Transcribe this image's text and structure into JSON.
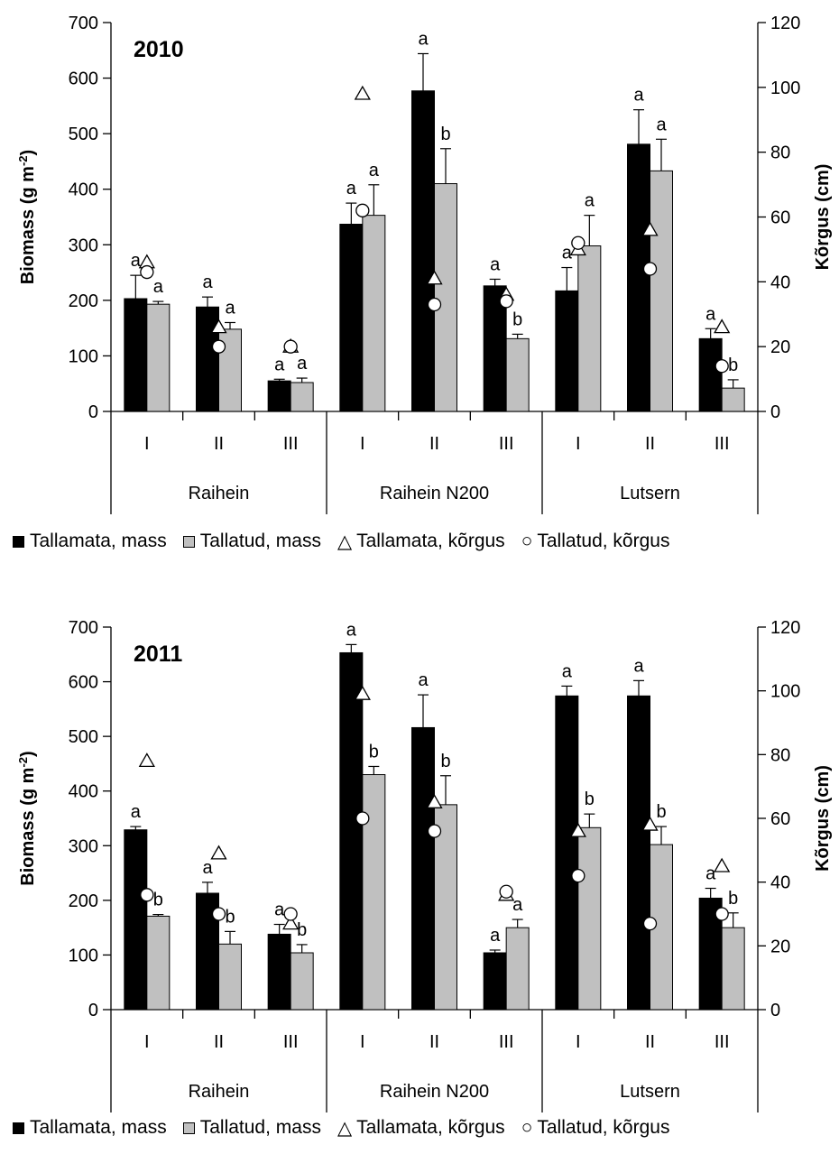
{
  "chart_data": [
    {
      "type": "bar",
      "title": "2010",
      "ylabel": "Biomass (g m-2)",
      "ylabel_text": "Biomass (g m",
      "ylabel_sup": "-2",
      "ylabel_close": ")",
      "y2label": "Kõrgus (cm)",
      "ylim": [
        0,
        700
      ],
      "yticks": [
        "0",
        "100",
        "200",
        "300",
        "400",
        "500",
        "600",
        "700"
      ],
      "y2lim": [
        0,
        120
      ],
      "y2ticks": [
        "0",
        "20",
        "40",
        "60",
        "80",
        "100",
        "120"
      ],
      "groups": [
        "Raihein",
        "Raihein N200",
        "Lutsern"
      ],
      "categories": [
        "I",
        "II",
        "III",
        "I",
        "II",
        "III",
        "I",
        "II",
        "III"
      ],
      "colors": {
        "Tallamata, mass": "#000000",
        "Tallatud, mass": "#c0c0c0"
      },
      "series": [
        {
          "name": "Tallamata, mass",
          "kind": "bar",
          "values": [
            203,
            188,
            55,
            337,
            577,
            226,
            217,
            481,
            131
          ],
          "errors": [
            42,
            18,
            3,
            38,
            67,
            12,
            42,
            62,
            18
          ],
          "letters": [
            "a",
            "a",
            "a",
            "a",
            "a",
            "a",
            "a",
            "a",
            "a"
          ]
        },
        {
          "name": "Tallatud, mass",
          "kind": "bar",
          "values": [
            193,
            148,
            52,
            353,
            410,
            131,
            298,
            433,
            42
          ],
          "errors": [
            5,
            12,
            8,
            55,
            63,
            8,
            55,
            57,
            15
          ],
          "letters": [
            "a",
            "a",
            "a",
            "a",
            "b",
            "b",
            "a",
            "a",
            "b"
          ]
        },
        {
          "name": "Tallamata, kõrgus",
          "kind": "marker",
          "values": [
            46,
            26,
            20,
            98,
            41,
            36,
            50,
            56,
            26
          ]
        },
        {
          "name": "Tallatud, kõrgus",
          "kind": "marker",
          "values": [
            43,
            20,
            20,
            62,
            33,
            34,
            52,
            44,
            14
          ]
        }
      ]
    },
    {
      "type": "bar",
      "title": "2011",
      "ylabel": "Biomass (g m-2)",
      "ylabel_text": "Biomass (g m",
      "ylabel_sup": "-2",
      "ylabel_close": ")",
      "y2label": "Kõrgus (cm)",
      "ylim": [
        0,
        700
      ],
      "yticks": [
        "0",
        "100",
        "200",
        "300",
        "400",
        "500",
        "600",
        "700"
      ],
      "y2lim": [
        0,
        120
      ],
      "y2ticks": [
        "0",
        "20",
        "40",
        "60",
        "80",
        "100",
        "120"
      ],
      "groups": [
        "Raihein",
        "Raihein N200",
        "Lutsern"
      ],
      "categories": [
        "I",
        "II",
        "III",
        "I",
        "II",
        "III",
        "I",
        "II",
        "III"
      ],
      "colors": {
        "Tallamata, mass": "#000000",
        "Tallatud, mass": "#c0c0c0"
      },
      "series": [
        {
          "name": "Tallamata, mass",
          "kind": "bar",
          "values": [
            329,
            213,
            138,
            653,
            516,
            104,
            574,
            574,
            204
          ],
          "errors": [
            6,
            20,
            18,
            15,
            60,
            5,
            18,
            28,
            18
          ],
          "letters": [
            "a",
            "a",
            "a",
            "a",
            "a",
            "a",
            "a",
            "a",
            "a"
          ]
        },
        {
          "name": "Tallatud, mass",
          "kind": "bar",
          "values": [
            171,
            120,
            104,
            430,
            375,
            150,
            333,
            302,
            150
          ],
          "errors": [
            3,
            23,
            15,
            15,
            53,
            15,
            25,
            33,
            27
          ],
          "letters": [
            "b",
            "b",
            "b",
            "b",
            "b",
            "a",
            "b",
            "b",
            "b"
          ]
        },
        {
          "name": "Tallamata, kõrgus",
          "kind": "marker",
          "values": [
            78,
            49,
            27,
            99,
            65,
            36,
            56,
            58,
            45
          ]
        },
        {
          "name": "Tallatud, kõrgus",
          "kind": "marker",
          "values": [
            36,
            30,
            30,
            60,
            56,
            37,
            42,
            27,
            30
          ]
        }
      ]
    }
  ],
  "legend": [
    {
      "label": "Tallamata, mass",
      "glyph": "■"
    },
    {
      "label": "Tallatud, mass",
      "glyph": "□"
    },
    {
      "label": "Tallamata, kõrgus",
      "glyph": "△"
    },
    {
      "label": "Tallatud, kõrgus",
      "glyph": "○"
    }
  ]
}
